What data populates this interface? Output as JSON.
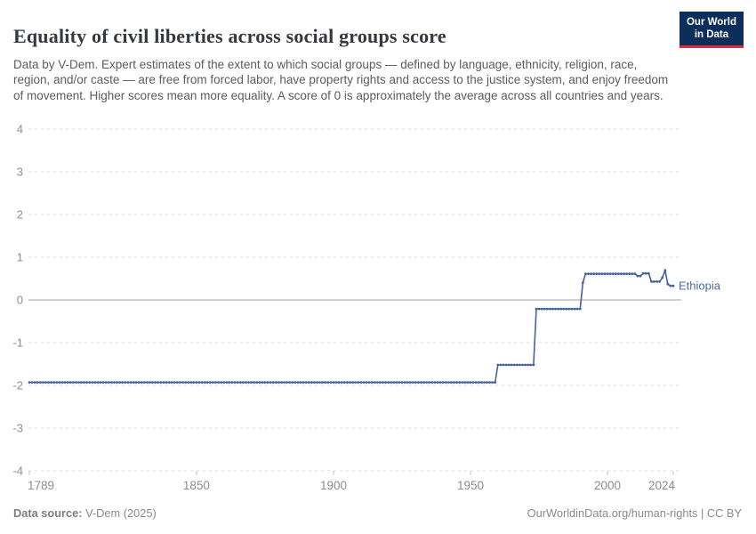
{
  "header": {
    "title": "Equality of civil liberties across social groups score",
    "subtitle": "Data by V-Dem. Expert estimates of the extent to which social groups — defined by language, ethnicity, religion, race, region, and/or caste — are free from forced labor, have property rights and access to the justice system, and enjoy freedom of movement. Higher scores mean more equality. A score of 0 is approximately the average across all countries and years.",
    "logo": {
      "line1": "Our World",
      "line2": "in Data",
      "bg_color": "#0d2e5b",
      "accent_color": "#da2c43"
    }
  },
  "chart_data": {
    "type": "line",
    "title": "Equality of civil liberties across social groups score",
    "entity_label": "Ethiopia",
    "xlabel": "",
    "ylabel": "",
    "xlim": [
      1789,
      2024
    ],
    "ylim": [
      -4,
      4
    ],
    "x_ticks": [
      1789,
      1850,
      1900,
      1950,
      2000,
      2024
    ],
    "y_ticks": [
      4,
      3,
      2,
      1,
      0,
      -1,
      -2,
      -3,
      -4
    ],
    "grid": "horizontal dashed, solid zero line",
    "legend_position": "end-of-line label",
    "colors": {
      "line": "#46639c",
      "end_label": "#4d6ba3",
      "grid": "#dcdcdc",
      "zero_line": "#a3a3a3",
      "tick": "#c3c3c3",
      "axis_text": "#8f8f8f"
    },
    "series": [
      {
        "name": "Ethiopia",
        "color": "#46639c",
        "label_color": "#4d6ba3",
        "segments": [
          {
            "start": 1789,
            "end": 1959,
            "value": -1.93
          },
          {
            "start": 1960,
            "end": 1973,
            "value": -1.52
          },
          {
            "start": 1974,
            "end": 1990,
            "value": -0.21
          },
          {
            "start": 1991,
            "end": 1991,
            "value": 0.4
          },
          {
            "start": 1992,
            "end": 2010,
            "value": 0.61
          },
          {
            "start": 2011,
            "end": 2012,
            "value": 0.56
          },
          {
            "start": 2013,
            "end": 2015,
            "value": 0.62
          },
          {
            "start": 2016,
            "end": 2019,
            "value": 0.43
          },
          {
            "start": 2020,
            "end": 2020,
            "value": 0.52
          },
          {
            "start": 2021,
            "end": 2021,
            "value": 0.69
          },
          {
            "start": 2022,
            "end": 2022,
            "value": 0.37
          },
          {
            "start": 2023,
            "end": 2024,
            "value": 0.33
          }
        ]
      }
    ]
  },
  "footer": {
    "source_label": "Data source:",
    "source_value": " V-Dem (2025)",
    "credit": "OurWorldinData.org/human-rights | CC BY"
  }
}
